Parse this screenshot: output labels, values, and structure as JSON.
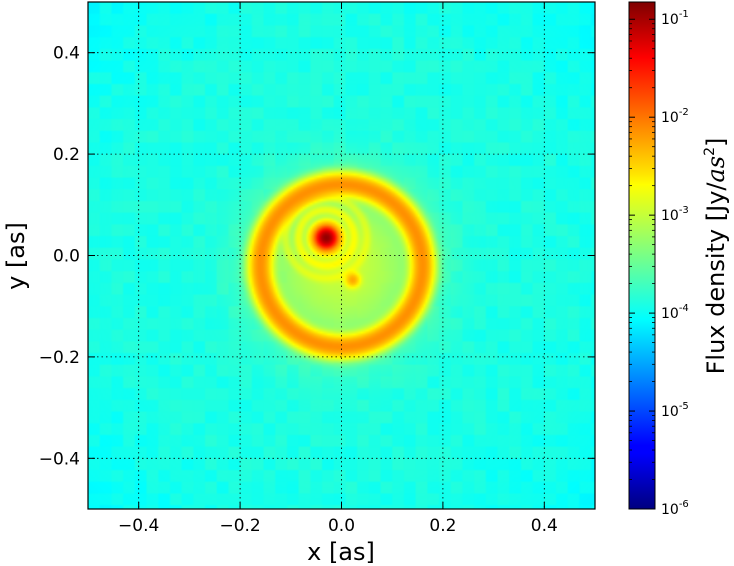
{
  "chart_data": {
    "type": "heatmap",
    "title": "",
    "xlabel": "x [as]",
    "ylabel": "y [as]",
    "xlim": [
      -0.5,
      0.5
    ],
    "ylim": [
      -0.5,
      0.5
    ],
    "x_ticks": [
      -0.4,
      -0.2,
      0.0,
      0.2,
      0.4
    ],
    "y_ticks": [
      -0.4,
      -0.2,
      0.0,
      0.2,
      0.4
    ],
    "x_tick_labels": [
      "−0.4",
      "−0.2",
      "0.0",
      "0.2",
      "0.4"
    ],
    "y_tick_labels": [
      "−0.4",
      "−0.2",
      "0.0",
      "0.2",
      "0.4"
    ],
    "grid": true,
    "colormap": "jet",
    "colorbar": {
      "label_prefix": "Flux density [Jy/",
      "label_unit": "as",
      "label_exp": "2",
      "label_suffix": "]",
      "scale": "log",
      "range": [
        1e-06,
        0.15
      ],
      "ticks": [
        {
          "base": "10",
          "exp": "-6",
          "value": 1e-06
        },
        {
          "base": "10",
          "exp": "-5",
          "value": 1e-05
        },
        {
          "base": "10",
          "exp": "-4",
          "value": 0.0001
        },
        {
          "base": "10",
          "exp": "-3",
          "value": 0.001
        },
        {
          "base": "10",
          "exp": "-2",
          "value": 0.01
        },
        {
          "base": "10",
          "exp": "-1",
          "value": 0.1
        }
      ]
    },
    "features": {
      "background_level": 0.00012,
      "ring": {
        "center": [
          0.0,
          -0.02
        ],
        "radius": 0.16,
        "width": 0.018,
        "peak": 0.006
      },
      "halo": {
        "center": [
          0.0,
          -0.02
        ],
        "radius": 0.14,
        "peak": 0.0008
      },
      "primary_source": {
        "center": [
          -0.03,
          0.035
        ],
        "radius": 0.014,
        "peak": 0.12
      },
      "secondary_source": {
        "center": [
          0.022,
          -0.048
        ],
        "radius": 0.012,
        "peak": 0.004
      },
      "inner_arcs": {
        "center": [
          -0.03,
          0.035
        ],
        "radii": [
          0.03,
          0.055,
          0.08
        ],
        "peak": 0.0015
      }
    }
  }
}
